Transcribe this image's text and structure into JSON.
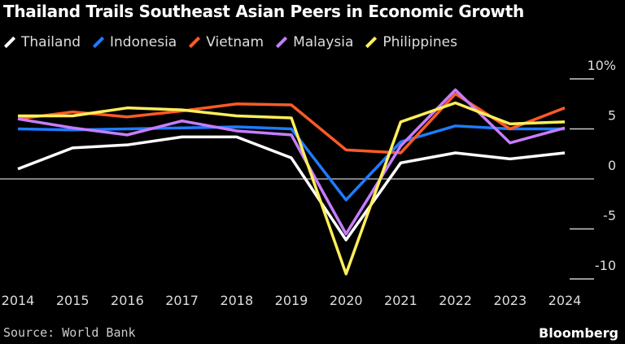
{
  "source": "Source: World Bank",
  "brand": "Bloomberg",
  "chart_data": {
    "type": "line",
    "title": "Thailand Trails Southeast Asian Peers in Economic Growth",
    "x": [
      2014,
      2015,
      2016,
      2017,
      2018,
      2019,
      2020,
      2021,
      2022,
      2023,
      2024
    ],
    "ylim": [
      -10,
      10
    ],
    "yticks": [
      10,
      5,
      0,
      -5,
      -10
    ],
    "ytick_labels": [
      "10%",
      "5",
      "0",
      "-5",
      "-10"
    ],
    "legend_placement": "top-left",
    "grid": false,
    "series": [
      {
        "name": "Thailand",
        "color": "#ffffff",
        "values": [
          1.0,
          3.1,
          3.4,
          4.2,
          4.2,
          2.1,
          -6.1,
          1.6,
          2.6,
          2.0,
          2.6
        ]
      },
      {
        "name": "Indonesia",
        "color": "#1f7bff",
        "values": [
          5.0,
          4.9,
          5.0,
          5.1,
          5.2,
          5.0,
          -2.1,
          3.7,
          5.3,
          5.0,
          5.0
        ]
      },
      {
        "name": "Vietnam",
        "color": "#ff5a26",
        "values": [
          6.0,
          6.7,
          6.2,
          6.8,
          7.5,
          7.4,
          2.9,
          2.6,
          8.5,
          5.0,
          7.1
        ]
      },
      {
        "name": "Malaysia",
        "color": "#c77dff",
        "values": [
          6.0,
          5.1,
          4.4,
          5.8,
          4.8,
          4.4,
          -5.5,
          3.3,
          8.9,
          3.6,
          5.1
        ]
      },
      {
        "name": "Philippines",
        "color": "#ffef5a",
        "values": [
          6.3,
          6.3,
          7.1,
          6.9,
          6.3,
          6.1,
          -9.5,
          5.7,
          7.6,
          5.5,
          5.7
        ]
      }
    ]
  }
}
